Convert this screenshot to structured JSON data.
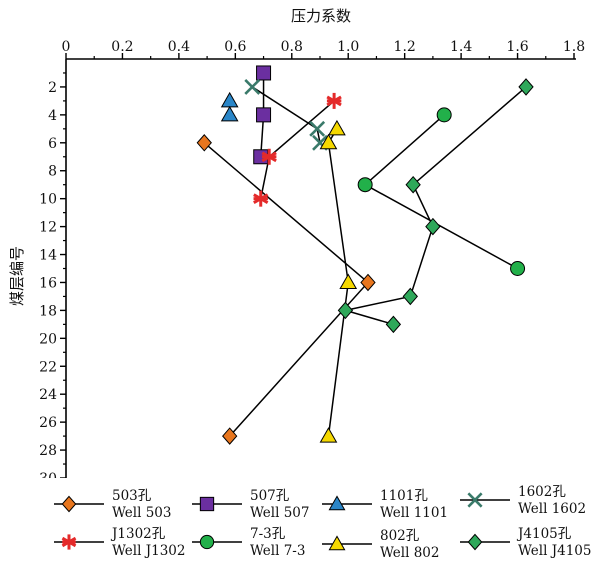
{
  "chart_data": {
    "type": "line",
    "xlabel": "压力系数",
    "ylabel": "煤层编号",
    "x_ticks": [
      "0",
      "0.2",
      "0.4",
      "0.6",
      "0.8",
      "1.0",
      "1.2",
      "1.4",
      "1.6",
      "1.8"
    ],
    "y_ticks": [
      "2",
      "4",
      "6",
      "8",
      "10",
      "12",
      "14",
      "16",
      "18",
      "20",
      "22",
      "24",
      "26",
      "28",
      "30"
    ],
    "xlim": [
      0,
      1.8
    ],
    "ylim": [
      0,
      30
    ],
    "x_axis_position": "top",
    "y_inverted": true,
    "grid": false,
    "legend_position": "bottom",
    "series": [
      {
        "name": "503孔",
        "name_en": "Well 503",
        "marker": "diamond",
        "color": "#e8761e",
        "points": [
          [
            0.49,
            6
          ],
          [
            1.07,
            16
          ],
          [
            0.58,
            27
          ]
        ]
      },
      {
        "name": "507孔",
        "name_en": "Well 507",
        "marker": "square",
        "color": "#6b2fa0",
        "points": [
          [
            0.7,
            1
          ],
          [
            0.7,
            4
          ],
          [
            0.69,
            7
          ]
        ]
      },
      {
        "name": "1101孔",
        "name_en": "Well 1101",
        "marker": "triangle",
        "color": "#2a86c8",
        "points": [
          [
            0.58,
            3
          ],
          [
            0.58,
            4
          ]
        ]
      },
      {
        "name": "1602孔",
        "name_en": "Well 1602",
        "marker": "x",
        "color": "#3a7a6a",
        "points": [
          [
            0.66,
            2
          ],
          [
            0.89,
            5
          ],
          [
            0.9,
            6
          ]
        ]
      },
      {
        "name": "J1302孔",
        "name_en": "Well J1302",
        "marker": "asterisk",
        "color": "#e42a2a",
        "points": [
          [
            0.95,
            3
          ],
          [
            0.72,
            7
          ],
          [
            0.69,
            10
          ]
        ]
      },
      {
        "name": "7-3孔",
        "name_en": "Well 7-3",
        "marker": "circle",
        "color": "#22b04a",
        "points": [
          [
            1.34,
            4
          ],
          [
            1.06,
            9
          ],
          [
            1.6,
            15
          ]
        ]
      },
      {
        "name": "802孔",
        "name_en": "Well 802",
        "marker": "triangle",
        "color": "#f5d800",
        "points": [
          [
            0.96,
            5
          ],
          [
            0.93,
            6
          ],
          [
            1.0,
            16
          ],
          [
            0.93,
            27
          ]
        ]
      },
      {
        "name": "J4105孔",
        "name_en": "Well J4105",
        "marker": "diamond",
        "color": "#2ea85a",
        "points": [
          [
            1.63,
            2
          ],
          [
            1.23,
            9
          ],
          [
            1.3,
            12
          ],
          [
            1.22,
            17
          ],
          [
            0.99,
            18
          ],
          [
            1.16,
            19
          ]
        ]
      }
    ]
  }
}
